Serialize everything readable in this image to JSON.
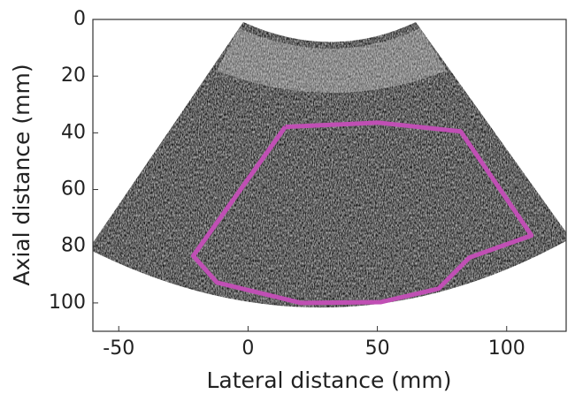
{
  "chart_data": {
    "type": "line",
    "x_label": "Lateral distance (mm)",
    "y_label": "Axial distance (mm)",
    "x": [
      14.4,
      50.3,
      82.2,
      109.6,
      85.6,
      73.6,
      51.4,
      20.5,
      -12,
      -21.2,
      14.4
    ],
    "values": [
      37.9,
      36.4,
      39.5,
      76.2,
      84.0,
      95.0,
      99.7,
      100,
      92.8,
      83.4,
      37.9
    ],
    "color": "#c04fb4",
    "xlim": [
      -60,
      123
    ],
    "xticks": [
      -50,
      0,
      50,
      100
    ],
    "ylim": [
      110,
      0
    ],
    "yticks": [
      0,
      20,
      40,
      60,
      80,
      100
    ]
  }
}
